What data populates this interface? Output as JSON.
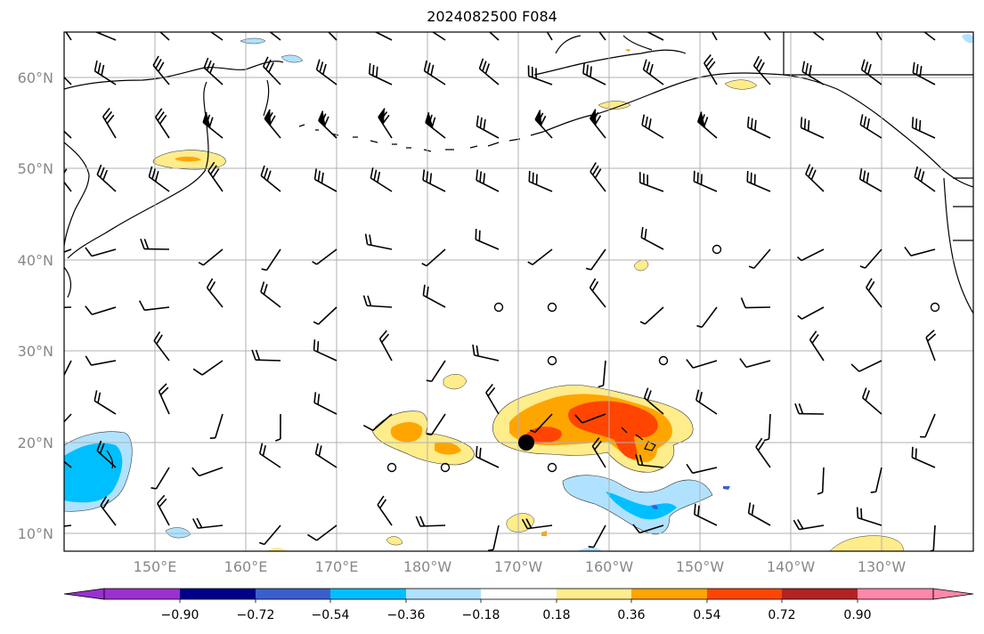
{
  "title": "2024082500 F084",
  "lat_labels": [
    "60°N",
    "50°N",
    "40°N",
    "30°N",
    "20°N",
    "10°N"
  ],
  "lon_labels": [
    "150°E",
    "160°E",
    "170°E",
    "180°W",
    "170°W",
    "160°W",
    "150°W",
    "140°W",
    "130°W"
  ],
  "colorbar": {
    "tick_labels": [
      "−0.90",
      "−0.72",
      "−0.54",
      "−0.36",
      "−0.18",
      "0.18",
      "0.36",
      "0.54",
      "0.72",
      "0.90"
    ],
    "colors": [
      "#9b30d0",
      "#00008b",
      "#3a5fcd",
      "#00bfff",
      "#b0e2ff",
      "#ffffff",
      "#ffec8b",
      "#ffa500",
      "#ff4500",
      "#b22222",
      "#ff88aa"
    ]
  },
  "colors": {
    "pos_light": "#ffec8b",
    "pos_mid": "#ffa500",
    "pos_strong": "#ff4500",
    "neg_light": "#b0e2ff",
    "neg_mid": "#00bfff",
    "neg_strong": "#3a5fcd",
    "marker": "#000000"
  },
  "marker": {
    "name": "storm-center",
    "lon": -169,
    "lat": 20
  }
}
